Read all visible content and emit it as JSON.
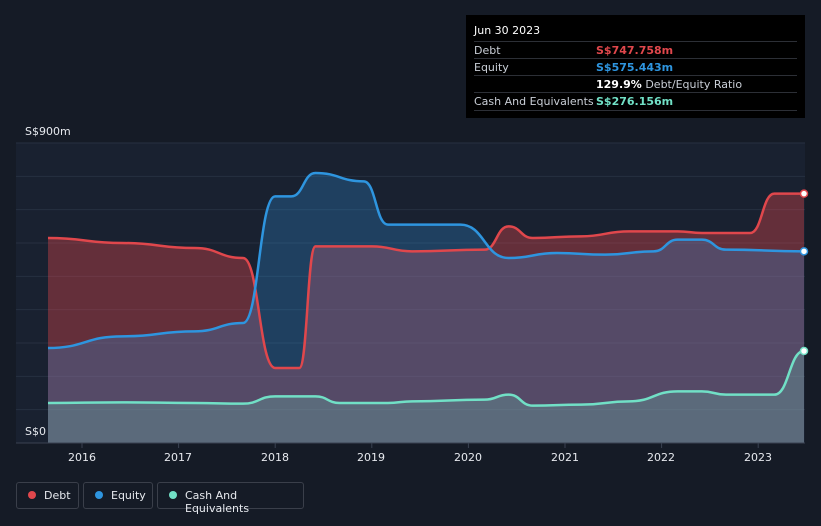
{
  "tooltip": {
    "date": "Jun 30 2023",
    "debt_label": "Debt",
    "debt_value": "S$747.758m",
    "equity_label": "Equity",
    "equity_value": "S$575.443m",
    "ratio_value": "129.9%",
    "ratio_label": "Debt/Equity Ratio",
    "cash_label": "Cash And Equivalents",
    "cash_value": "S$276.156m"
  },
  "colors": {
    "debt": "#e0474c",
    "equity": "#2e95df",
    "cash": "#71e0c6",
    "background": "#151b26"
  },
  "chart_data": {
    "type": "area",
    "y_top_label": "S$900m",
    "y_bottom_label": "S$0",
    "ylim": [
      0,
      900
    ],
    "x_ticks": [
      "2016",
      "2017",
      "2018",
      "2019",
      "2020",
      "2021",
      "2022",
      "2023"
    ],
    "legend": [
      "Debt",
      "Equity",
      "Cash And Equivalents"
    ],
    "series": [
      {
        "name": "Debt",
        "points": [
          [
            "2015-09",
            615
          ],
          [
            "2016-06",
            600
          ],
          [
            "2017-03",
            585
          ],
          [
            "2017-09",
            555
          ],
          [
            "2018-01",
            225
          ],
          [
            "2018-04",
            225
          ],
          [
            "2018-06",
            590
          ],
          [
            "2019-01",
            590
          ],
          [
            "2019-06",
            575
          ],
          [
            "2020-03",
            580
          ],
          [
            "2020-06",
            650
          ],
          [
            "2020-09",
            615
          ],
          [
            "2021-03",
            620
          ],
          [
            "2021-09",
            635
          ],
          [
            "2022-03",
            635
          ],
          [
            "2022-06",
            630
          ],
          [
            "2022-12",
            630
          ],
          [
            "2023-03",
            748
          ],
          [
            "2023-06",
            748
          ]
        ]
      },
      {
        "name": "Equity",
        "points": [
          [
            "2015-09",
            285
          ],
          [
            "2016-06",
            320
          ],
          [
            "2017-03",
            335
          ],
          [
            "2017-09",
            360
          ],
          [
            "2018-01",
            740
          ],
          [
            "2018-03",
            740
          ],
          [
            "2018-06",
            810
          ],
          [
            "2018-12",
            785
          ],
          [
            "2019-03",
            655
          ],
          [
            "2019-06",
            655
          ],
          [
            "2019-12",
            655
          ],
          [
            "2020-06",
            555
          ],
          [
            "2020-12",
            570
          ],
          [
            "2021-06",
            565
          ],
          [
            "2021-12",
            575
          ],
          [
            "2022-03",
            610
          ],
          [
            "2022-06",
            610
          ],
          [
            "2022-09",
            580
          ],
          [
            "2023-06",
            575
          ]
        ]
      },
      {
        "name": "Cash And Equivalents",
        "points": [
          [
            "2015-09",
            120
          ],
          [
            "2016-06",
            122
          ],
          [
            "2017-03",
            120
          ],
          [
            "2017-09",
            118
          ],
          [
            "2018-01",
            140
          ],
          [
            "2018-06",
            140
          ],
          [
            "2018-09",
            120
          ],
          [
            "2019-03",
            120
          ],
          [
            "2019-06",
            125
          ],
          [
            "2020-03",
            130
          ],
          [
            "2020-06",
            145
          ],
          [
            "2020-09",
            112
          ],
          [
            "2021-03",
            115
          ],
          [
            "2021-09",
            125
          ],
          [
            "2022-03",
            155
          ],
          [
            "2022-06",
            155
          ],
          [
            "2022-09",
            145
          ],
          [
            "2023-03",
            145
          ],
          [
            "2023-06",
            276
          ]
        ]
      }
    ]
  }
}
